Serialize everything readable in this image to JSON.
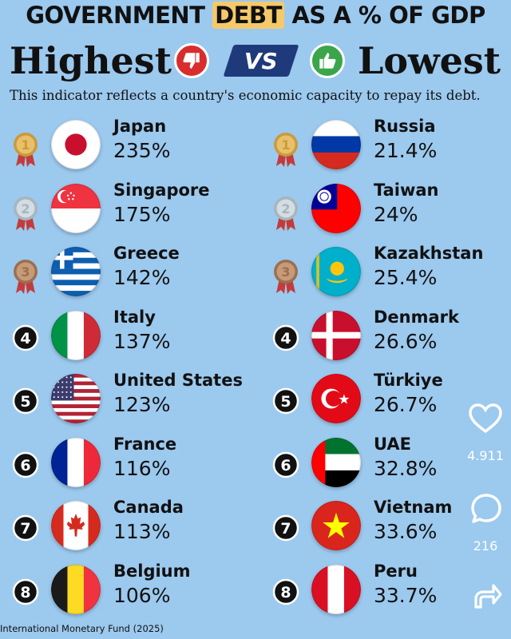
{
  "title": {
    "pre": "GOVERNMENT ",
    "highlight": "DEBT",
    "post": " AS A % OF GDP"
  },
  "headline": {
    "left": "Highest",
    "vs": "VS",
    "right": "Lowest"
  },
  "subtitle": "This indicator reflects a country's economic capacity to repay its debt.",
  "chart_data": {
    "type": "table",
    "unit": "%",
    "highest": [
      {
        "rank": 1,
        "country": "Japan",
        "value": 235,
        "label": "235%"
      },
      {
        "rank": 2,
        "country": "Singapore",
        "value": 175,
        "label": "175%"
      },
      {
        "rank": 3,
        "country": "Greece",
        "value": 142,
        "label": "142%"
      },
      {
        "rank": 4,
        "country": "Italy",
        "value": 137,
        "label": "137%"
      },
      {
        "rank": 5,
        "country": "United States",
        "value": 123,
        "label": "123%"
      },
      {
        "rank": 6,
        "country": "France",
        "value": 116,
        "label": "116%"
      },
      {
        "rank": 7,
        "country": "Canada",
        "value": 113,
        "label": "113%"
      },
      {
        "rank": 8,
        "country": "Belgium",
        "value": 106,
        "label": "106%"
      }
    ],
    "lowest": [
      {
        "rank": 1,
        "country": "Russia",
        "value": 21.4,
        "label": "21.4%"
      },
      {
        "rank": 2,
        "country": "Taiwan",
        "value": 24,
        "label": "24%"
      },
      {
        "rank": 3,
        "country": "Kazakhstan",
        "value": 25.4,
        "label": "25.4%"
      },
      {
        "rank": 4,
        "country": "Denmark",
        "value": 26.6,
        "label": "26.6%"
      },
      {
        "rank": 5,
        "country": "Türkiye",
        "value": 26.7,
        "label": "26.7%"
      },
      {
        "rank": 6,
        "country": "UAE",
        "value": 32.8,
        "label": "32.8%"
      },
      {
        "rank": 7,
        "country": "Vietnam",
        "value": 33.6,
        "label": "33.6%"
      },
      {
        "rank": 8,
        "country": "Peru",
        "value": 33.7,
        "label": "33.7%"
      }
    ]
  },
  "social": {
    "likes": "4.911",
    "comments": "216"
  },
  "source": "International Monetary Fund (2025)",
  "colors": {
    "background": "#9cc9ee",
    "highlight": "#f5c969",
    "thumb_down": "#d92d2d",
    "thumb_up": "#3aa54a",
    "vs_box": "#1f3a7a"
  }
}
